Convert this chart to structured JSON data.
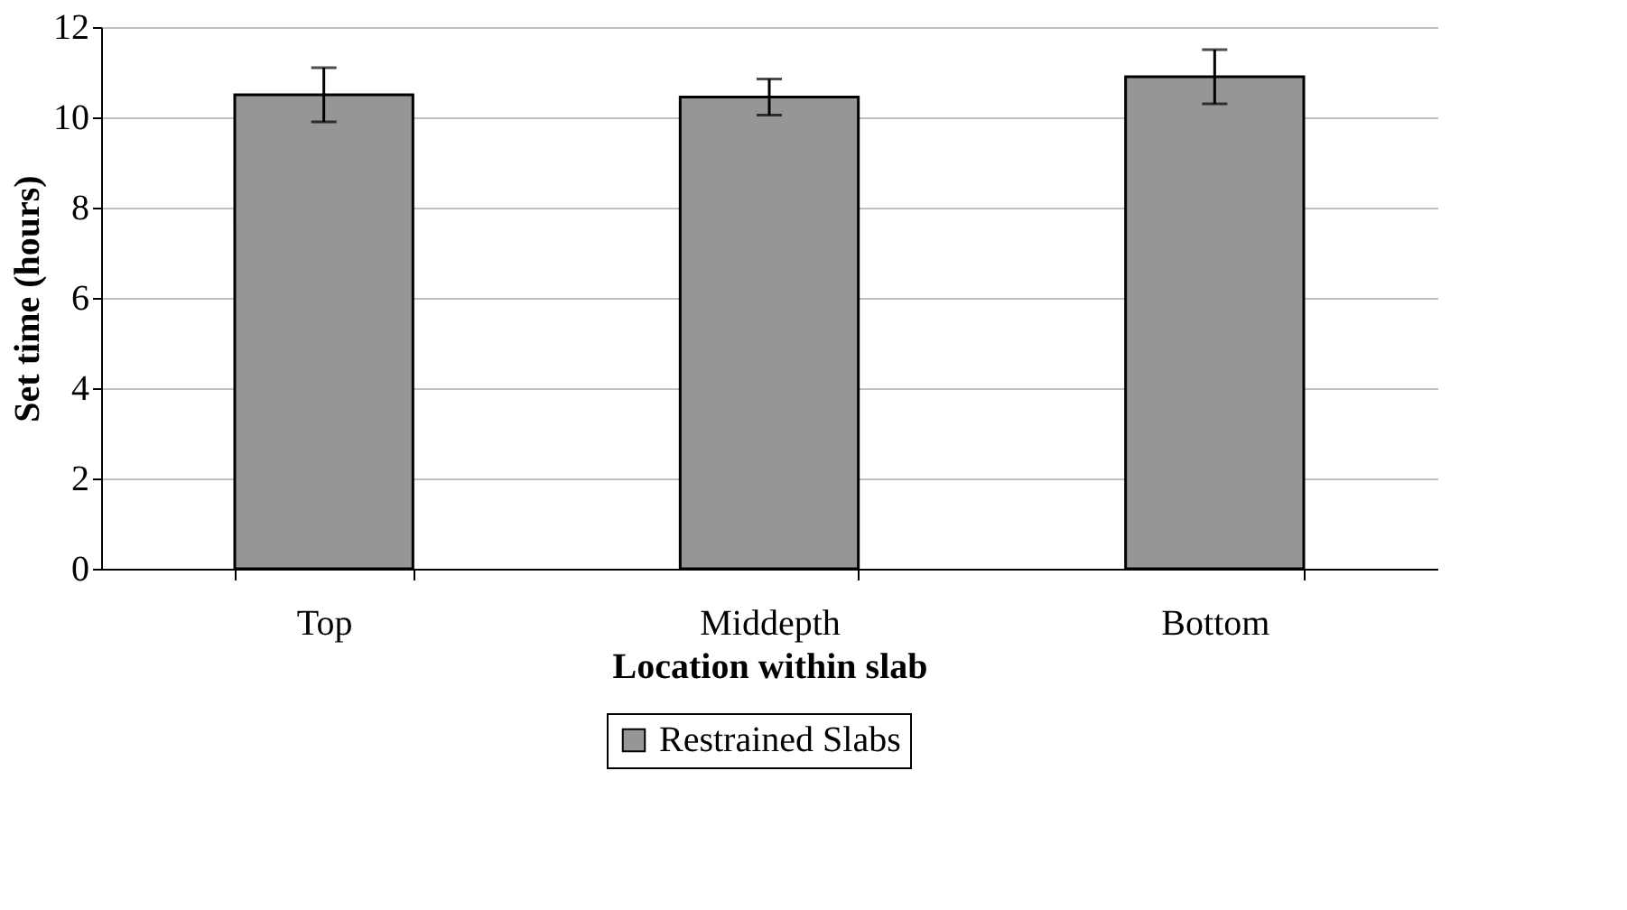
{
  "chart_data": {
    "type": "bar",
    "xlabel": "Location within slab",
    "ylabel": "Set time (hours)",
    "categories": [
      "Top",
      "Middepth",
      "Bottom"
    ],
    "series": [
      {
        "name": "Restrained Slabs",
        "color": "#969696",
        "values": [
          10.5,
          10.45,
          10.9
        ],
        "errors": [
          0.6,
          0.4,
          0.6
        ]
      }
    ],
    "ylim": [
      0,
      12
    ],
    "yticks": [
      0,
      2,
      4,
      6,
      8,
      10,
      12
    ],
    "grid": "y",
    "legend": "bottom"
  }
}
